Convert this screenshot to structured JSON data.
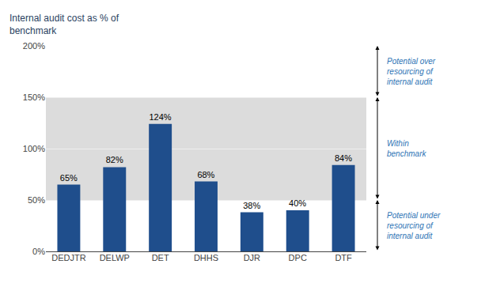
{
  "chart_data": {
    "type": "bar",
    "ylabel": "Internal audit cost as % of\nbenchmark",
    "categories": [
      "DEDJTR",
      "DELWP",
      "DET",
      "DHHS",
      "DJR",
      "DPC",
      "DTF"
    ],
    "values": [
      65,
      82,
      124,
      68,
      38,
      40,
      84
    ],
    "value_labels": [
      "65%",
      "82%",
      "124%",
      "68%",
      "38%",
      "40%",
      "84%"
    ],
    "data_labels": true,
    "color": "#1F4E8C",
    "ylim": [
      0,
      200
    ],
    "yticks": [
      {
        "value": 0,
        "label": "0%"
      },
      {
        "value": 50,
        "label": "50%"
      },
      {
        "value": 100,
        "label": "100%"
      },
      {
        "value": 150,
        "label": "150%"
      },
      {
        "value": 200,
        "label": "200%"
      }
    ],
    "grid": true,
    "band": {
      "from": 50,
      "to": 150,
      "color": "#DCDCDC"
    },
    "annotations": [
      {
        "text": "Potential over\nresourcing of\ninternal audit",
        "from": 150,
        "to": 200,
        "color": "#2E74B5"
      },
      {
        "text": "Within\nbenchmark",
        "from": 50,
        "to": 150,
        "color": "#2E74B5"
      },
      {
        "text": "Potential under\nresourcing of\ninternal audit",
        "from": 0,
        "to": 50,
        "color": "#2E74B5"
      }
    ]
  }
}
